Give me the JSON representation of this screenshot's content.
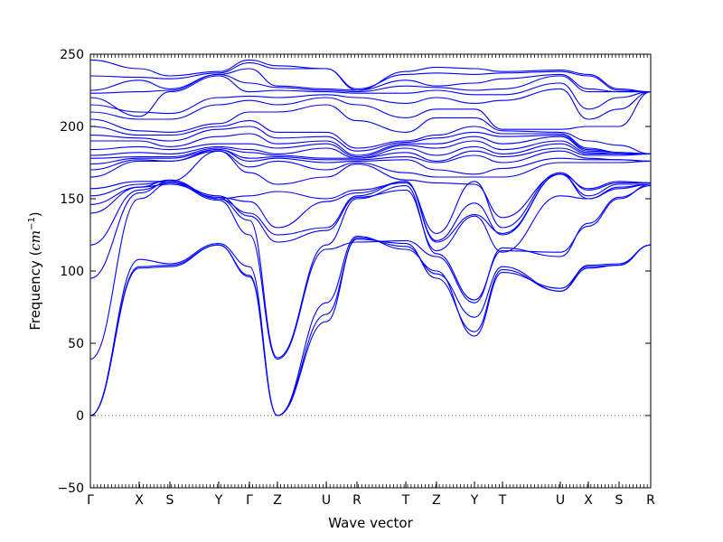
{
  "chart_data": {
    "type": "line",
    "title": "",
    "xlabel": "Wave vector",
    "ylabel_text": "Frequency (",
    "ylabel_unit": "cm",
    "ylabel_exp": "−1",
    "ylabel_close": ")",
    "ylim": [
      -50,
      250
    ],
    "yticks": [
      -50,
      0,
      50,
      100,
      150,
      200,
      250
    ],
    "ytick_labels": [
      "−50",
      "0",
      "50",
      "100",
      "150",
      "200",
      "250"
    ],
    "xlim": [
      0,
      1
    ],
    "xticks": [
      {
        "label": "Γ",
        "x": 0.0
      },
      {
        "label": "X",
        "x": 0.0871
      },
      {
        "label": "S",
        "x": 0.1419
      },
      {
        "label": "Y",
        "x": 0.229
      },
      {
        "label": "Γ",
        "x": 0.2839
      },
      {
        "label": "Z",
        "x": 0.3339
      },
      {
        "label": "U",
        "x": 0.421
      },
      {
        "label": "R",
        "x": 0.4758
      },
      {
        "label": "T",
        "x": 0.5629
      },
      {
        "label": "Z",
        "x": 0.6177
      },
      {
        "label": "Y",
        "x": 0.6855
      },
      {
        "label": "T",
        "x": 0.7355
      },
      {
        "label": "U",
        "x": 0.8387
      },
      {
        "label": "X",
        "x": 0.8887
      },
      {
        "label": "S",
        "x": 0.9435
      },
      {
        "label": "R",
        "x": 1.0
      }
    ],
    "zero_line": {
      "y": 0,
      "style": "dotted"
    },
    "series_color": "#0000ff",
    "series": [
      {
        "y": [
          0,
          102,
          103,
          118,
          96,
          0,
          65,
          123,
          117,
          98,
          68,
          103,
          86,
          102,
          104,
          118
        ]
      },
      {
        "y": [
          0,
          103,
          104,
          118,
          97,
          0,
          70,
          122,
          119,
          95,
          58,
          101,
          86,
          104,
          105,
          118
        ]
      },
      {
        "y": [
          0,
          108,
          105,
          119,
          103,
          0,
          78,
          124,
          115,
          100,
          55,
          99,
          88,
          103,
          104,
          118
        ]
      },
      {
        "y": [
          39,
          150,
          161,
          149,
          125,
          39,
          115,
          120,
          121,
          110,
          78,
          116,
          110,
          133,
          151,
          159
        ]
      },
      {
        "y": [
          95,
          154,
          162,
          150,
          135,
          40,
          118,
          150,
          159,
          112,
          80,
          114,
          113,
          131,
          150,
          160
        ]
      },
      {
        "y": [
          118,
          156,
          161,
          152,
          138,
          120,
          128,
          151,
          156,
          114,
          138,
          113,
          152,
          150,
          158,
          160
        ]
      },
      {
        "y": [
          140,
          158,
          163,
          150,
          140,
          125,
          130,
          152,
          162,
          120,
          139,
          126,
          167,
          150,
          157,
          160
        ]
      },
      {
        "y": [
          146,
          158,
          160,
          151,
          148,
          130,
          148,
          154,
          162,
          121,
          147,
          125,
          167,
          152,
          160,
          160
        ]
      },
      {
        "y": [
          152,
          160,
          162,
          150,
          152,
          155,
          150,
          156,
          161,
          126,
          162,
          130,
          168,
          156,
          161,
          161
        ]
      },
      {
        "y": [
          157,
          162,
          162,
          183,
          168,
          160,
          165,
          174,
          163,
          161,
          160,
          137,
          167,
          157,
          162,
          161
        ]
      },
      {
        "y": [
          165,
          176,
          176,
          183,
          172,
          176,
          170,
          175,
          168,
          165,
          165,
          165,
          175,
          175,
          175,
          176
        ]
      },
      {
        "y": [
          170,
          177,
          176,
          184,
          176,
          178,
          175,
          176,
          177,
          170,
          167,
          171,
          178,
          177,
          177,
          176
        ]
      },
      {
        "y": [
          174,
          178,
          178,
          184,
          178,
          179,
          177,
          177,
          179,
          175,
          180,
          175,
          183,
          178,
          177,
          176
        ]
      },
      {
        "y": [
          178,
          179,
          179,
          185,
          182,
          180,
          178,
          178,
          182,
          176,
          183,
          179,
          185,
          180,
          180,
          181
        ]
      },
      {
        "y": [
          180,
          182,
          181,
          186,
          184,
          181,
          185,
          178,
          185,
          180,
          186,
          181,
          188,
          181,
          181,
          181
        ]
      },
      {
        "y": [
          184,
          186,
          184,
          188,
          188,
          185,
          188,
          179,
          187,
          185,
          190,
          184,
          190,
          182,
          181,
          181
        ]
      },
      {
        "y": [
          190,
          190,
          186,
          193,
          195,
          188,
          190,
          180,
          188,
          188,
          193,
          188,
          193,
          183,
          182,
          181
        ]
      },
      {
        "y": [
          194,
          192,
          190,
          198,
          200,
          192,
          193,
          183,
          189,
          192,
          196,
          193,
          194,
          184,
          182,
          181
        ]
      },
      {
        "y": [
          200,
          194,
          194,
          200,
          204,
          196,
          196,
          185,
          190,
          194,
          200,
          195,
          195,
          185,
          182,
          181
        ]
      },
      {
        "y": [
          205,
          197,
          196,
          202,
          210,
          210,
          215,
          204,
          196,
          206,
          206,
          197,
          196,
          190,
          187,
          181
        ]
      },
      {
        "y": [
          210,
          205,
          205,
          215,
          218,
          215,
          220,
          215,
          206,
          212,
          212,
          198,
          198,
          200,
          200,
          224
        ]
      },
      {
        "y": [
          215,
          210,
          209,
          220,
          221,
          220,
          222,
          220,
          216,
          220,
          216,
          218,
          226,
          205,
          212,
          224
        ]
      },
      {
        "y": [
          220,
          207,
          224,
          235,
          224,
          225,
          224,
          223,
          223,
          225,
          222,
          222,
          230,
          212,
          220,
          224
        ]
      },
      {
        "y": [
          223,
          224,
          225,
          236,
          230,
          227,
          225,
          224,
          228,
          227,
          225,
          226,
          235,
          224,
          224,
          224
        ]
      },
      {
        "y": [
          225,
          232,
          226,
          236,
          240,
          228,
          226,
          225,
          232,
          228,
          230,
          233,
          236,
          226,
          224,
          224
        ]
      },
      {
        "y": [
          235,
          234,
          233,
          237,
          244,
          240,
          240,
          226,
          236,
          237,
          236,
          237,
          238,
          235,
          225,
          224
        ]
      },
      {
        "y": [
          246,
          240,
          235,
          238,
          246,
          242,
          240,
          225,
          238,
          241,
          240,
          238,
          239,
          236,
          226,
          224
        ]
      }
    ]
  }
}
